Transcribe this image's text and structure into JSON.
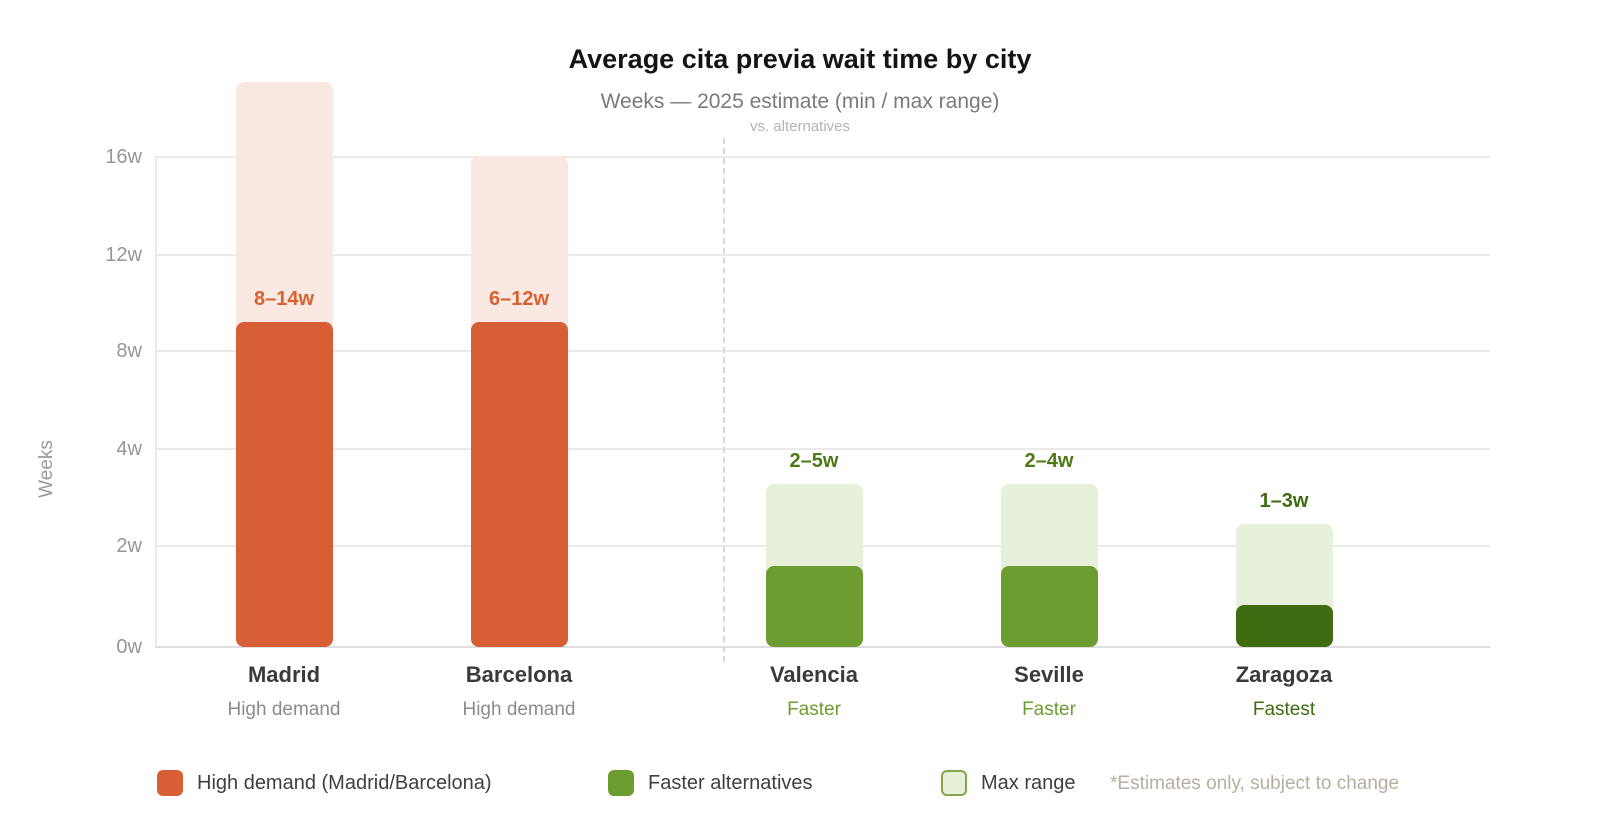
{
  "header": {
    "title": "Average cita previa wait time by city",
    "subtitle": "Weeks — 2025 estimate (min / max range)",
    "note": "vs. alternatives"
  },
  "chart_data": {
    "type": "bar",
    "title": "Average cita previa wait time by city",
    "subtitle": "Weeks — 2025 estimate (min / max range)",
    "annotation": "vs. alternatives",
    "categories": [
      "Madrid",
      "Barcelona",
      "Valencia",
      "Seville",
      "Zaragoza"
    ],
    "category_tags": [
      "High demand",
      "High demand",
      "Faster",
      "Faster",
      "Fastest"
    ],
    "category_groups": [
      "high-demand",
      "high-demand",
      "faster",
      "faster",
      "fastest"
    ],
    "series": [
      {
        "name": "Min wait (weeks)",
        "values": [
          8,
          6,
          2,
          2,
          1
        ]
      },
      {
        "name": "Max wait (weeks)",
        "values": [
          14,
          12,
          5,
          4,
          3
        ]
      }
    ],
    "range_labels": [
      "8–14w",
      "6–12w",
      "2–5w",
      "2–4w",
      "1–3w"
    ],
    "xlabel": "",
    "ylabel": "Weeks",
    "y_ticks": [
      "0w",
      "2w",
      "4w",
      "8w",
      "12w",
      "16w"
    ],
    "y_tick_values": [
      0,
      2,
      4,
      8,
      12,
      16
    ],
    "ylim": [
      0,
      16
    ],
    "grid": true,
    "legend_position": "bottom",
    "separator_note": "dashed vertical divider between Barcelona and Valencia"
  },
  "legend": {
    "items": [
      {
        "label": "High demand (Madrid/Barcelona)",
        "color": "#d85f35"
      },
      {
        "label": "Faster alternatives",
        "color": "#6d9d30"
      },
      {
        "label": "Max range",
        "color": "#e8f0da"
      }
    ],
    "note": "*Estimates only, subject to change"
  },
  "colors": {
    "high_demand": "#d85f35",
    "high_demand_range": "#fae8e2",
    "high_demand_label": "#d8612f",
    "faster": "#6d9d30",
    "faster_label": "#4c7a15",
    "fastest": "#3f6c10",
    "range_fill": "#e8f0da",
    "range_border": "#83a748",
    "grid": "#eaeaea",
    "baseline": "#dedede",
    "axis_text": "#969696",
    "city_text": "#3a3a3a",
    "muted_tag": "#8c8c8c",
    "divider": "#d8d8d8"
  }
}
